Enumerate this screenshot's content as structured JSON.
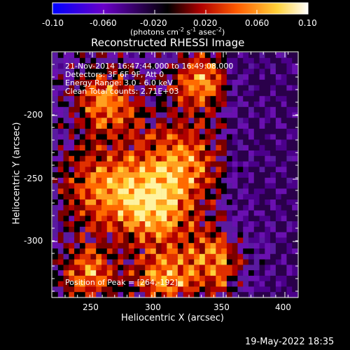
{
  "colorbar": {
    "ticks": [
      "-0.10",
      "-0.060",
      "-0.020",
      "0.020",
      "0.060",
      "0.10"
    ],
    "units_prefix": "(photons cm",
    "units_exp1": "-2",
    "units_mid": " s",
    "units_exp2": "-1",
    "units_mid2": " asec",
    "units_exp3": "-2",
    "units_suffix": ")",
    "colors": [
      "#0000ff",
      "#6a00c8",
      "#000000",
      "#b00000",
      "#ff5a00",
      "#ffd23a",
      "#ffffff"
    ]
  },
  "plot": {
    "title": "Reconstructed RHESSI Image",
    "xlabel": "Heliocentric X (arcsec)",
    "ylabel": "Heliocentric Y (arcsec)",
    "x_ticks": [
      "250",
      "300",
      "350",
      "400"
    ],
    "y_ticks": [
      "-200",
      "-250",
      "-300"
    ]
  },
  "annotations": {
    "line1": "21-Nov-2014 16:47:44.000 to 16:49:08.000",
    "line2": "Detectors: 3F 6F 9F, Att 0",
    "line3": "Energy Range: 3.0 - 6.0 keV",
    "line4": "Clean    Total counts: 2.71E+03",
    "peak": "Position of Peak = [264,-192]"
  },
  "footer": {
    "timestamp": "19-May-2022 18:35"
  }
}
